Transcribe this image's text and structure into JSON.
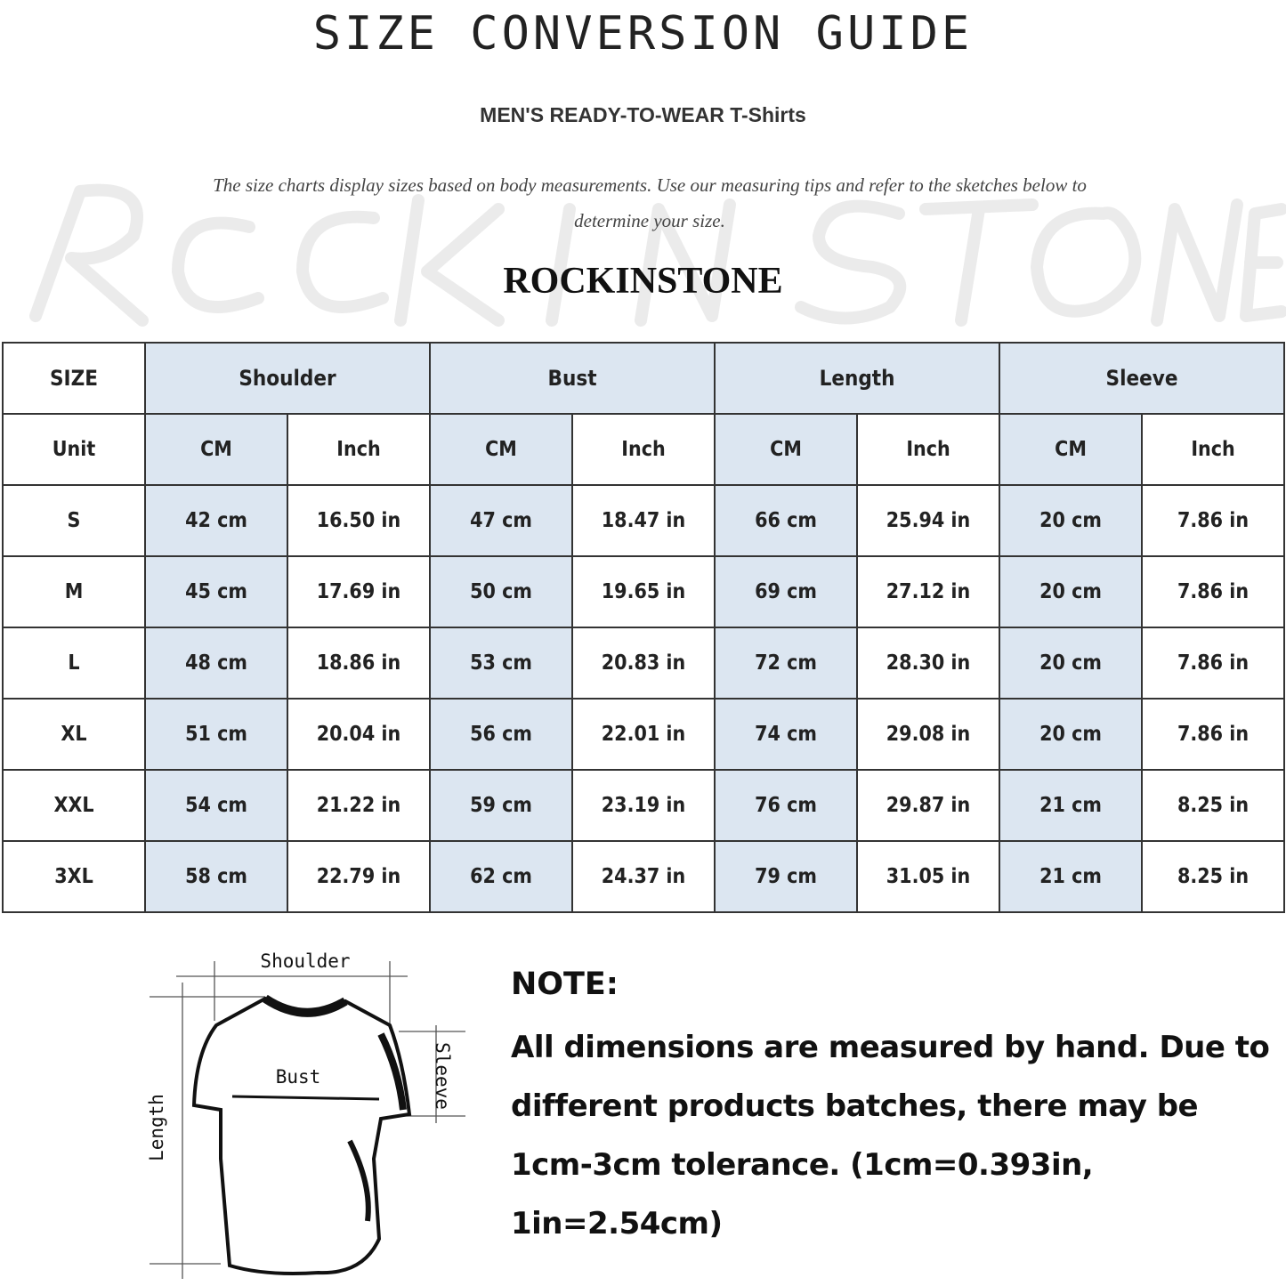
{
  "title": "SIZE CONVERSION GUIDE",
  "subtitle": "MEN'S READY-TO-WEAR T-Shirts",
  "description": "The size charts display sizes based on body measurements. Use our measuring tips and refer to the sketches below to determine your size.",
  "watermark": "ROCK IN STONE",
  "brand": "ROCKINSTONE",
  "colors": {
    "header_fill": "#dce6f1",
    "cm_column_fill": "#dce6f1",
    "border": "#333333"
  },
  "chart_data": {
    "type": "table",
    "size_header": "SIZE",
    "unit_label": "Unit",
    "groups": [
      "Shoulder",
      "Bust",
      "Length",
      "Sleeve"
    ],
    "units": [
      "CM",
      "Inch"
    ],
    "rows": [
      {
        "size": "S",
        "values": [
          "42 cm",
          "16.50 in",
          "47 cm",
          "18.47  in",
          "66 cm",
          "25.94  in",
          "20 cm",
          "7.86  in"
        ]
      },
      {
        "size": "M",
        "values": [
          "45 cm",
          "17.69  in",
          "50 cm",
          "19.65  in",
          "69 cm",
          "27.12  in",
          "20 cm",
          "7.86  in"
        ]
      },
      {
        "size": "L",
        "values": [
          "48 cm",
          "18.86  in",
          "53 cm",
          "20.83  in",
          "72 cm",
          "28.30  in",
          "20 cm",
          "7.86  in"
        ]
      },
      {
        "size": "XL",
        "values": [
          "51 cm",
          "20.04  in",
          "56 cm",
          "22.01  in",
          "74 cm",
          "29.08  in",
          "20 cm",
          "7.86  in"
        ]
      },
      {
        "size": "XXL",
        "values": [
          "54 cm",
          "21.22  in",
          "59 cm",
          "23.19  in",
          "76 cm",
          "29.87  in",
          "21 cm",
          "8.25  in"
        ]
      },
      {
        "size": "3XL",
        "values": [
          "58 cm",
          "22.79  in",
          "62 cm",
          "24.37  in",
          "79 cm",
          "31.05  in",
          "21 cm",
          "8.25  in"
        ]
      }
    ]
  },
  "diagram": {
    "shoulder": "Shoulder",
    "bust": "Bust",
    "sleeve": "Sleeve",
    "length": "Length"
  },
  "note": {
    "title": "NOTE:",
    "body": "All dimensions are measured by hand. Due to different products batches, there may be 1cm-3cm tolerance. (1cm=0.393in, 1in=2.54cm)"
  }
}
